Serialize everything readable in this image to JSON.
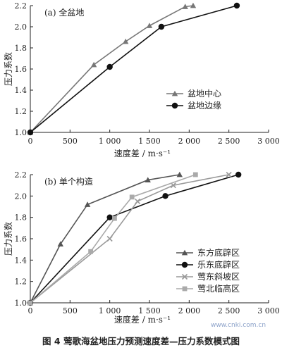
{
  "caption": "图 4   莺歌海盆地压力预测速度差—压力系数模式图",
  "watermark": "www.cnki.com.cn",
  "chart_data": [
    {
      "type": "line",
      "panel_label": "(a) 全盆地",
      "xlabel": "速度差 / m·s⁻¹",
      "ylabel": "压力系数",
      "xlim": [
        0,
        3000
      ],
      "ylim": [
        1.0,
        2.2
      ],
      "xticks": [
        0,
        500,
        1000,
        1500,
        2000,
        2500,
        3000
      ],
      "xtick_labels": [
        "0",
        "500",
        "1 000",
        "1 500",
        "2 000",
        "2 500",
        "3 000"
      ],
      "yticks": [
        1.0,
        1.2,
        1.4,
        1.6,
        1.8,
        2.0,
        2.2
      ],
      "ytick_labels": [
        "1.0",
        "1.2",
        "1.4",
        "1.6",
        "1.8",
        "2.0",
        "2.2"
      ],
      "legend_position": "center-right",
      "series": [
        {
          "name": "盆地中心",
          "marker": "triangle",
          "color": "#777777",
          "x": [
            0,
            800,
            1200,
            1500,
            1950,
            2050
          ],
          "y": [
            1.0,
            1.64,
            1.86,
            2.01,
            2.19,
            2.2
          ]
        },
        {
          "name": "盆地边缘",
          "marker": "circle",
          "color": "#111111",
          "x": [
            0,
            1000,
            1650,
            2600
          ],
          "y": [
            1.0,
            1.62,
            2.0,
            2.2
          ]
        }
      ]
    },
    {
      "type": "line",
      "panel_label": "(b) 单个构造",
      "xlabel": "速度差 / m·s⁻¹",
      "ylabel": "压力系数",
      "xlim": [
        0,
        3000
      ],
      "ylim": [
        1.0,
        2.2
      ],
      "xticks": [
        0,
        500,
        1000,
        1500,
        2000,
        2500,
        3000
      ],
      "xtick_labels": [
        "0",
        "500",
        "1 000",
        "1 500",
        "2 000",
        "2 500",
        "3 000"
      ],
      "yticks": [
        1.0,
        1.2,
        1.4,
        1.6,
        1.8,
        2.0,
        2.2
      ],
      "ytick_labels": [
        "1.0",
        "1.2",
        "1.4",
        "1.6",
        "1.8",
        "2.0",
        "2.2"
      ],
      "legend_position": "bottom-right",
      "series": [
        {
          "name": "东方底辟区",
          "marker": "triangle",
          "color": "#555555",
          "x": [
            0,
            380,
            720,
            1480,
            1880
          ],
          "y": [
            1.0,
            1.55,
            1.92,
            2.15,
            2.2
          ]
        },
        {
          "name": "乐东底辟区",
          "marker": "circle",
          "color": "#111111",
          "x": [
            0,
            1000,
            1700,
            2620
          ],
          "y": [
            1.0,
            1.8,
            2.0,
            2.2
          ]
        },
        {
          "name": "莺东斜坡区",
          "marker": "x",
          "color": "#999999",
          "x": [
            0,
            1000,
            1350,
            1800,
            2500
          ],
          "y": [
            1.0,
            1.6,
            1.95,
            2.1,
            2.2
          ]
        },
        {
          "name": "莺北临高区",
          "marker": "square",
          "color": "#aaaaaa",
          "x": [
            0,
            760,
            1060,
            1280,
            2080
          ],
          "y": [
            1.0,
            1.48,
            1.79,
            1.99,
            2.2
          ]
        }
      ]
    }
  ]
}
